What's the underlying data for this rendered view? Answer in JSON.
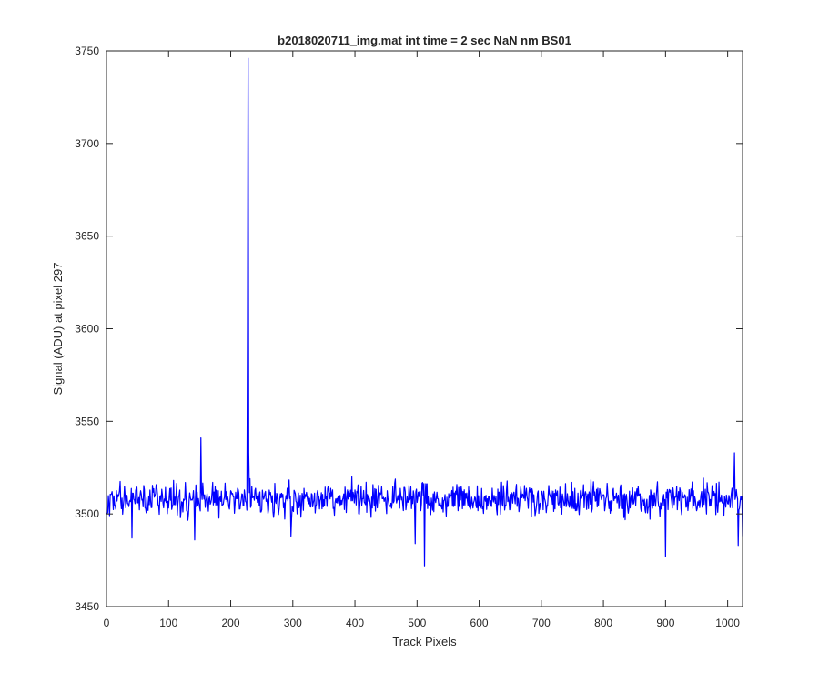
{
  "chart_data": {
    "type": "line",
    "title": "b2018020711_img.mat int time = 2 sec  NaN nm BS01",
    "xlabel": "Track Pixels",
    "ylabel": "Signal (ADU) at pixel 297",
    "xlim": [
      0,
      1024
    ],
    "ylim": [
      3450,
      3750
    ],
    "xticks": [
      0,
      100,
      200,
      300,
      400,
      500,
      600,
      700,
      800,
      900,
      1000
    ],
    "yticks": [
      3450,
      3500,
      3550,
      3600,
      3650,
      3700,
      3750
    ],
    "grid": false,
    "box": true,
    "series": [
      {
        "color": "#0000ff",
        "baseline": 3508,
        "noise_amplitude": 8,
        "n_points": 1024,
        "notable_points": [
          {
            "x": 1,
            "y": 3500
          },
          {
            "x": 41,
            "y": 3487
          },
          {
            "x": 142,
            "y": 3486
          },
          {
            "x": 152,
            "y": 3541
          },
          {
            "x": 226,
            "y": 3502
          },
          {
            "x": 227,
            "y": 3600
          },
          {
            "x": 228,
            "y": 3746
          },
          {
            "x": 229,
            "y": 3533
          },
          {
            "x": 231,
            "y": 3519
          },
          {
            "x": 297,
            "y": 3488
          },
          {
            "x": 497,
            "y": 3484
          },
          {
            "x": 512,
            "y": 3472
          },
          {
            "x": 900,
            "y": 3477
          },
          {
            "x": 1011,
            "y": 3533
          },
          {
            "x": 1017,
            "y": 3483
          },
          {
            "x": 1024,
            "y": 3488
          }
        ]
      }
    ]
  }
}
